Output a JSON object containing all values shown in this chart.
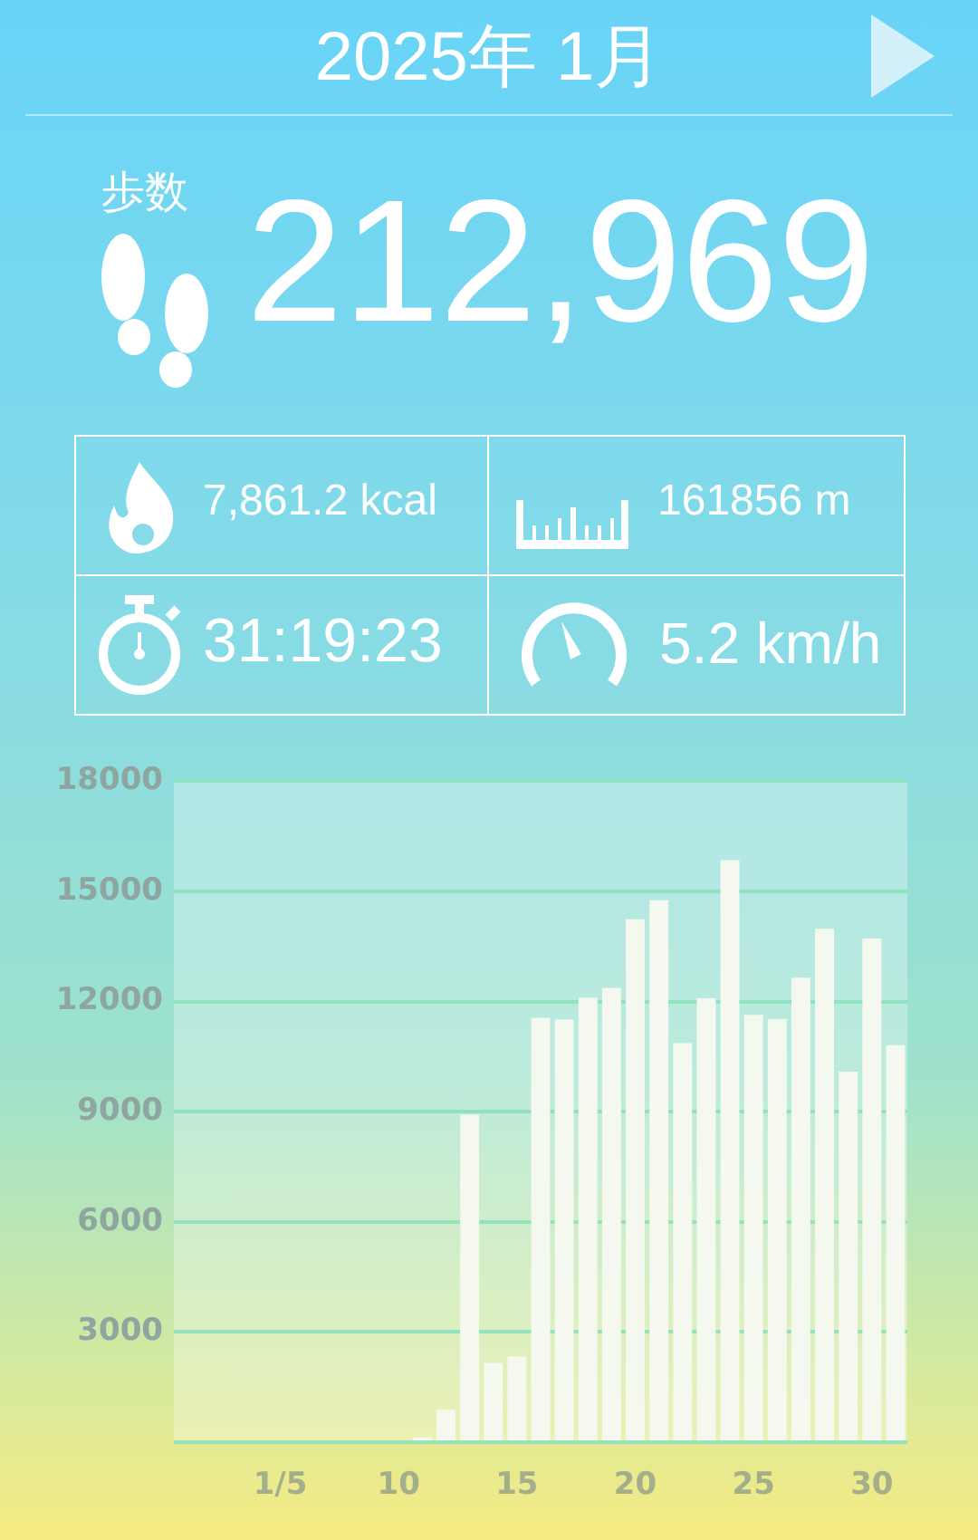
{
  "chart_data": {
    "type": "bar",
    "title": "2025年 1月",
    "annotations": [
      "歩数",
      "212,969",
      "7,861.2 kcal",
      "161856 m",
      "31:19:23",
      "5.2 km/h"
    ],
    "categories": [
      null,
      null,
      null,
      null,
      "1/5",
      null,
      null,
      null,
      null,
      "10",
      null,
      null,
      null,
      null,
      "15",
      null,
      null,
      null,
      null,
      "20",
      null,
      null,
      null,
      null,
      "25",
      null,
      null,
      null,
      null,
      "30",
      null
    ],
    "values": [
      0,
      0,
      0,
      0,
      0,
      0,
      0,
      0,
      0,
      0,
      130,
      880,
      8920,
      2150,
      2340,
      11560,
      11510,
      12110,
      12370,
      14240,
      14760,
      10870,
      12090,
      15850,
      11640,
      11520,
      12650,
      13980,
      10090,
      13720,
      10810
    ],
    "color": "#f5f8ee",
    "ylim": [
      0,
      18000
    ],
    "yticks": [
      {
        "value": 0,
        "label": null
      },
      3000,
      6000,
      9000,
      12000,
      15000,
      18000
    ],
    "grid": "y"
  }
}
